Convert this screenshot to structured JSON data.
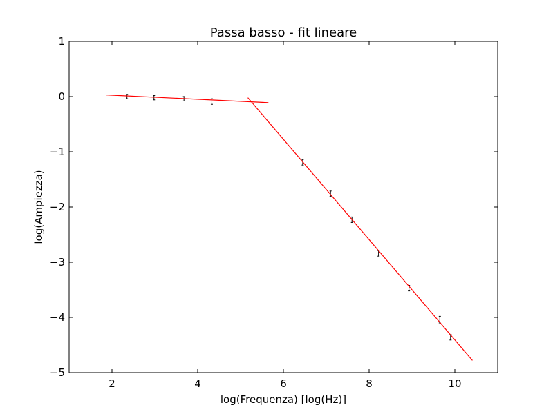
{
  "chart_data": {
    "type": "scatter",
    "title": "Passa basso - fit lineare",
    "xlabel": "log(Frequenza) [log(Hz)]",
    "ylabel": "log(Ampiezza)",
    "xlim": [
      1,
      11
    ],
    "ylim": [
      -5,
      1
    ],
    "x_ticks": [
      2,
      4,
      6,
      8,
      10
    ],
    "y_ticks": [
      1,
      0,
      -1,
      -2,
      -3,
      -4,
      -5
    ],
    "x_tick_labels": [
      "2",
      "4",
      "6",
      "8",
      "10"
    ],
    "y_tick_labels": [
      "1",
      "0",
      "−1",
      "−2",
      "−3",
      "−4",
      "−5"
    ],
    "grid": false,
    "legend": "none",
    "series": [
      {
        "kind": "errorbar",
        "color": "#000000",
        "x": [
          2.35,
          2.98,
          3.68,
          4.33,
          6.45,
          7.1,
          7.6,
          8.22,
          8.93,
          9.65,
          9.9
        ],
        "y": [
          0.0,
          -0.02,
          -0.04,
          -0.09,
          -1.19,
          -1.76,
          -2.23,
          -2.84,
          -3.47,
          -4.04,
          -4.36
        ],
        "yerr": [
          0.04,
          0.04,
          0.04,
          0.05,
          0.05,
          0.05,
          0.05,
          0.05,
          0.05,
          0.06,
          0.05
        ]
      },
      {
        "kind": "line",
        "color": "#ff0000",
        "x": [
          1.87,
          5.65
        ],
        "y": [
          0.03,
          -0.11
        ]
      },
      {
        "kind": "line",
        "color": "#ff0000",
        "x": [
          5.17,
          10.41
        ],
        "y": [
          -0.02,
          -4.78
        ]
      }
    ]
  }
}
